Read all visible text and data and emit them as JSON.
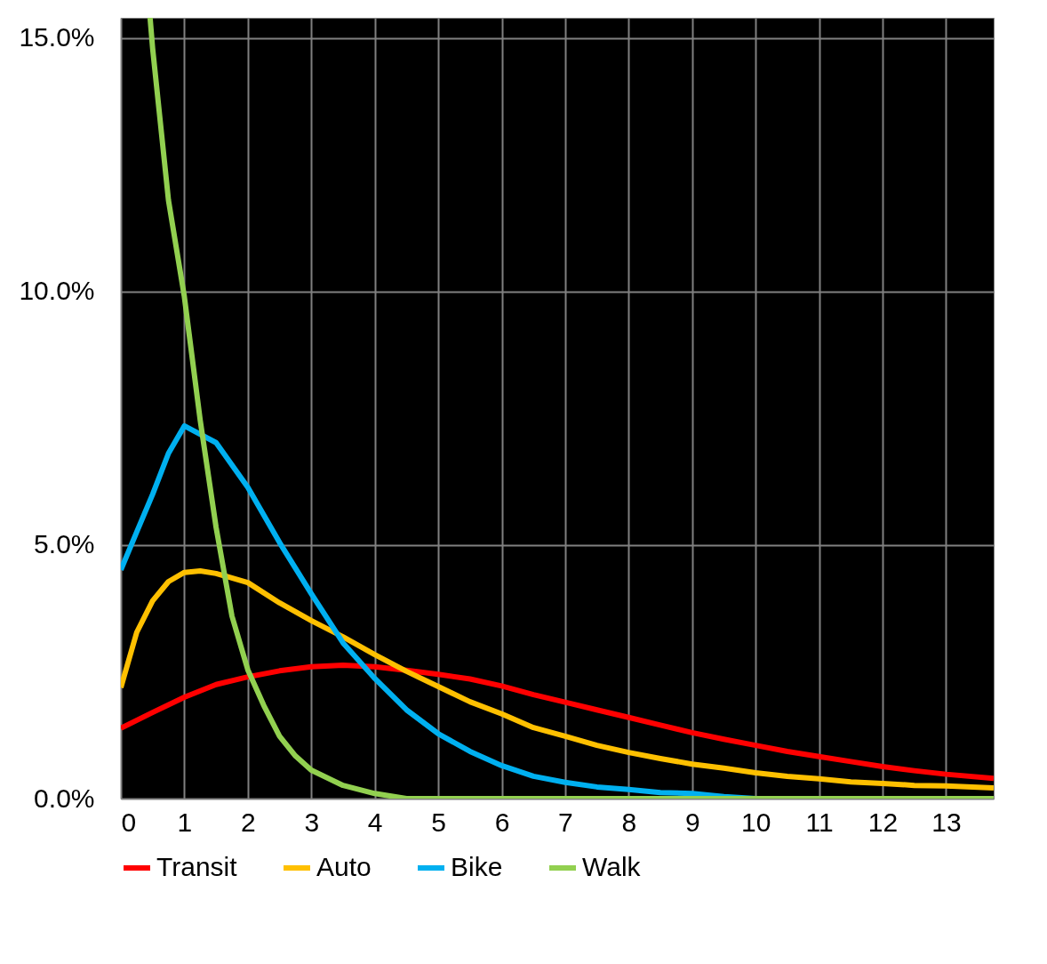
{
  "chart_data": {
    "type": "line",
    "xlim": [
      0,
      13.75
    ],
    "xticks": [
      0,
      1,
      2,
      3,
      4,
      5,
      6,
      7,
      8,
      9,
      10,
      11,
      12,
      13
    ],
    "ylim": [
      0,
      15.4
    ],
    "yticks": [
      {
        "value": 0,
        "label": "0.0%"
      },
      {
        "value": 5,
        "label": "5.0%"
      },
      {
        "value": 10,
        "label": "10.0%"
      },
      {
        "value": 15,
        "label": "15.0%"
      }
    ],
    "grid": true,
    "legend": "bottom",
    "marker": "none",
    "line_style": "solid",
    "series": [
      {
        "name": "Transit",
        "color": "#ff0000",
        "x": [
          0,
          0.5,
          1,
          1.5,
          2,
          2.5,
          3,
          3.5,
          4,
          4.5,
          5,
          5.5,
          6,
          6.5,
          7,
          7.5,
          8,
          8.5,
          9,
          9.5,
          10,
          10.5,
          11,
          11.5,
          12,
          12.5,
          13,
          13.75
        ],
        "values": [
          1.39,
          1.7,
          2.0,
          2.25,
          2.4,
          2.52,
          2.6,
          2.63,
          2.6,
          2.53,
          2.45,
          2.36,
          2.22,
          2.05,
          1.9,
          1.75,
          1.6,
          1.45,
          1.3,
          1.17,
          1.05,
          0.93,
          0.83,
          0.73,
          0.63,
          0.55,
          0.48,
          0.4
        ]
      },
      {
        "name": "Auto",
        "color": "#ffc000",
        "x": [
          0,
          0.25,
          0.5,
          0.75,
          1,
          1.25,
          1.5,
          2,
          2.5,
          3,
          3.5,
          4,
          4.5,
          5,
          5.5,
          6,
          6.5,
          7,
          7.5,
          8,
          8.5,
          9,
          9.5,
          10,
          10.5,
          11,
          11.5,
          12,
          12.5,
          13,
          13.75
        ],
        "values": [
          2.19,
          3.28,
          3.9,
          4.28,
          4.46,
          4.49,
          4.44,
          4.26,
          3.86,
          3.51,
          3.19,
          2.84,
          2.51,
          2.21,
          1.91,
          1.67,
          1.4,
          1.23,
          1.05,
          0.91,
          0.79,
          0.68,
          0.6,
          0.51,
          0.44,
          0.39,
          0.33,
          0.3,
          0.26,
          0.25,
          0.21
        ]
      },
      {
        "name": "Bike",
        "color": "#00b0f0",
        "x": [
          0,
          0.25,
          0.5,
          0.75,
          1,
          1.5,
          2,
          2.5,
          3,
          3.5,
          4,
          4.5,
          5,
          5.5,
          6,
          6.5,
          7,
          7.5,
          8,
          8.5,
          9,
          9.5,
          10,
          13.75
        ],
        "values": [
          4.51,
          5.26,
          6.0,
          6.81,
          7.35,
          7.02,
          6.14,
          5.05,
          4.04,
          3.07,
          2.37,
          1.75,
          1.28,
          0.93,
          0.65,
          0.44,
          0.32,
          0.23,
          0.18,
          0.12,
          0.1,
          0.04,
          0,
          0
        ]
      },
      {
        "name": "Walk",
        "color": "#92d050",
        "x": [
          0.46,
          0.5,
          0.75,
          1,
          1.25,
          1.5,
          1.75,
          2,
          2.25,
          2.5,
          2.75,
          3,
          3.5,
          4,
          4.5,
          13.75
        ],
        "values": [
          15.4,
          14.8,
          11.8,
          9.9,
          7.46,
          5.35,
          3.6,
          2.54,
          1.84,
          1.23,
          0.84,
          0.56,
          0.26,
          0.1,
          0,
          0
        ]
      }
    ]
  }
}
